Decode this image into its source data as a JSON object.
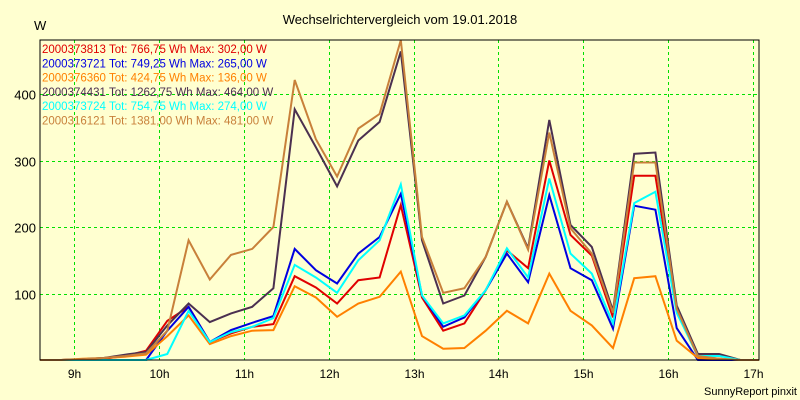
{
  "chart_data": {
    "type": "line",
    "title": "Wechselrichtervergleich vom 19.01.2018",
    "xlabel": "",
    "ylabel": "W",
    "footer": "SunnyReport pinxit",
    "xlim": [
      8.6,
      17.07
    ],
    "ylim": [
      0,
      481
    ],
    "grid": true,
    "legend_position": "top-left",
    "x_ticks": [
      {
        "value": 9,
        "label": "9h"
      },
      {
        "value": 10,
        "label": "10h"
      },
      {
        "value": 11,
        "label": "11h"
      },
      {
        "value": 12,
        "label": "12h"
      },
      {
        "value": 13,
        "label": "13h"
      },
      {
        "value": 14,
        "label": "14h"
      },
      {
        "value": 15,
        "label": "15h"
      },
      {
        "value": 16,
        "label": "16h"
      },
      {
        "value": 17,
        "label": "17h"
      }
    ],
    "y_ticks": [
      {
        "value": 100,
        "label": "100"
      },
      {
        "value": 200,
        "label": "200"
      },
      {
        "value": 300,
        "label": "300"
      },
      {
        "value": 400,
        "label": "400"
      }
    ],
    "x": [
      8.6,
      8.85,
      9.1,
      9.35,
      9.6,
      9.85,
      10.1,
      10.35,
      10.6,
      10.85,
      11.1,
      11.35,
      11.6,
      11.85,
      12.1,
      12.35,
      12.6,
      12.85,
      13.1,
      13.35,
      13.6,
      13.85,
      14.1,
      14.35,
      14.6,
      14.85,
      15.1,
      15.35,
      15.6,
      15.85,
      16.1,
      16.35,
      16.6,
      16.85,
      17.07
    ],
    "series": [
      {
        "name": "2000373813",
        "legend": "2000373813 Tot: 766,75 Wh Max: 302,00 W",
        "color": "#e00000",
        "values": [
          0,
          0,
          1,
          2,
          6,
          14,
          59,
          80,
          27,
          40,
          50,
          54,
          126,
          109,
          85,
          120,
          124,
          233,
          94,
          44,
          55,
          105,
          165,
          138,
          300,
          188,
          157,
          64,
          277,
          277,
          74,
          5,
          2,
          0,
          0
        ]
      },
      {
        "name": "2000373721",
        "legend": "2000373721 Tot: 749,25 Wh Max: 265,00 W",
        "color": "#0000e0",
        "values": [
          0,
          0,
          0,
          0,
          0,
          0,
          44,
          80,
          27,
          45,
          56,
          66,
          167,
          135,
          115,
          160,
          185,
          250,
          97,
          50,
          64,
          105,
          160,
          117,
          248,
          138,
          120,
          47,
          232,
          226,
          48,
          0,
          0,
          0,
          0
        ]
      },
      {
        "name": "2000376360",
        "legend": "2000376360 Tot: 424,75 Wh Max: 136,00 W",
        "color": "#ff8000",
        "values": [
          0,
          0,
          2,
          3,
          5,
          8,
          36,
          67,
          24,
          36,
          44,
          45,
          111,
          94,
          65,
          85,
          95,
          133,
          36,
          17,
          18,
          44,
          74,
          55,
          130,
          74,
          52,
          18,
          123,
          126,
          29,
          3,
          2,
          0,
          0
        ]
      },
      {
        "name": "2000374431",
        "legend": "2000374431 Tot: 1262,75 Wh Max: 464,00 W",
        "color": "#4b3050",
        "values": [
          0,
          0,
          1,
          3,
          8,
          12,
          52,
          85,
          57,
          70,
          80,
          108,
          377,
          320,
          261,
          330,
          358,
          464,
          180,
          85,
          97,
          155,
          238,
          168,
          361,
          203,
          170,
          74,
          310,
          312,
          82,
          9,
          9,
          0,
          0
        ]
      },
      {
        "name": "2000373724",
        "legend": "2000373724 Tot: 754,75 Wh Max: 274,00 W",
        "color": "#00ffff",
        "values": [
          0,
          0,
          0,
          0,
          0,
          0,
          9,
          74,
          27,
          42,
          50,
          63,
          143,
          124,
          101,
          150,
          180,
          264,
          97,
          55,
          67,
          105,
          168,
          124,
          273,
          160,
          130,
          55,
          236,
          253,
          71,
          6,
          6,
          0,
          0
        ]
      },
      {
        "name": "2000316121",
        "legend": "2000316121 Tot: 1381,00 Wh Max: 481,00 W",
        "color": "#c8803a",
        "values": [
          0,
          0,
          1,
          3,
          6,
          10,
          44,
          180,
          121,
          158,
          167,
          200,
          421,
          332,
          276,
          348,
          370,
          481,
          185,
          101,
          108,
          155,
          238,
          166,
          342,
          198,
          160,
          71,
          297,
          297,
          77,
          6,
          2,
          0,
          0
        ]
      }
    ]
  },
  "colors": {
    "background": "#ffffd0",
    "grid": "#00e000",
    "axis": "#000000"
  }
}
